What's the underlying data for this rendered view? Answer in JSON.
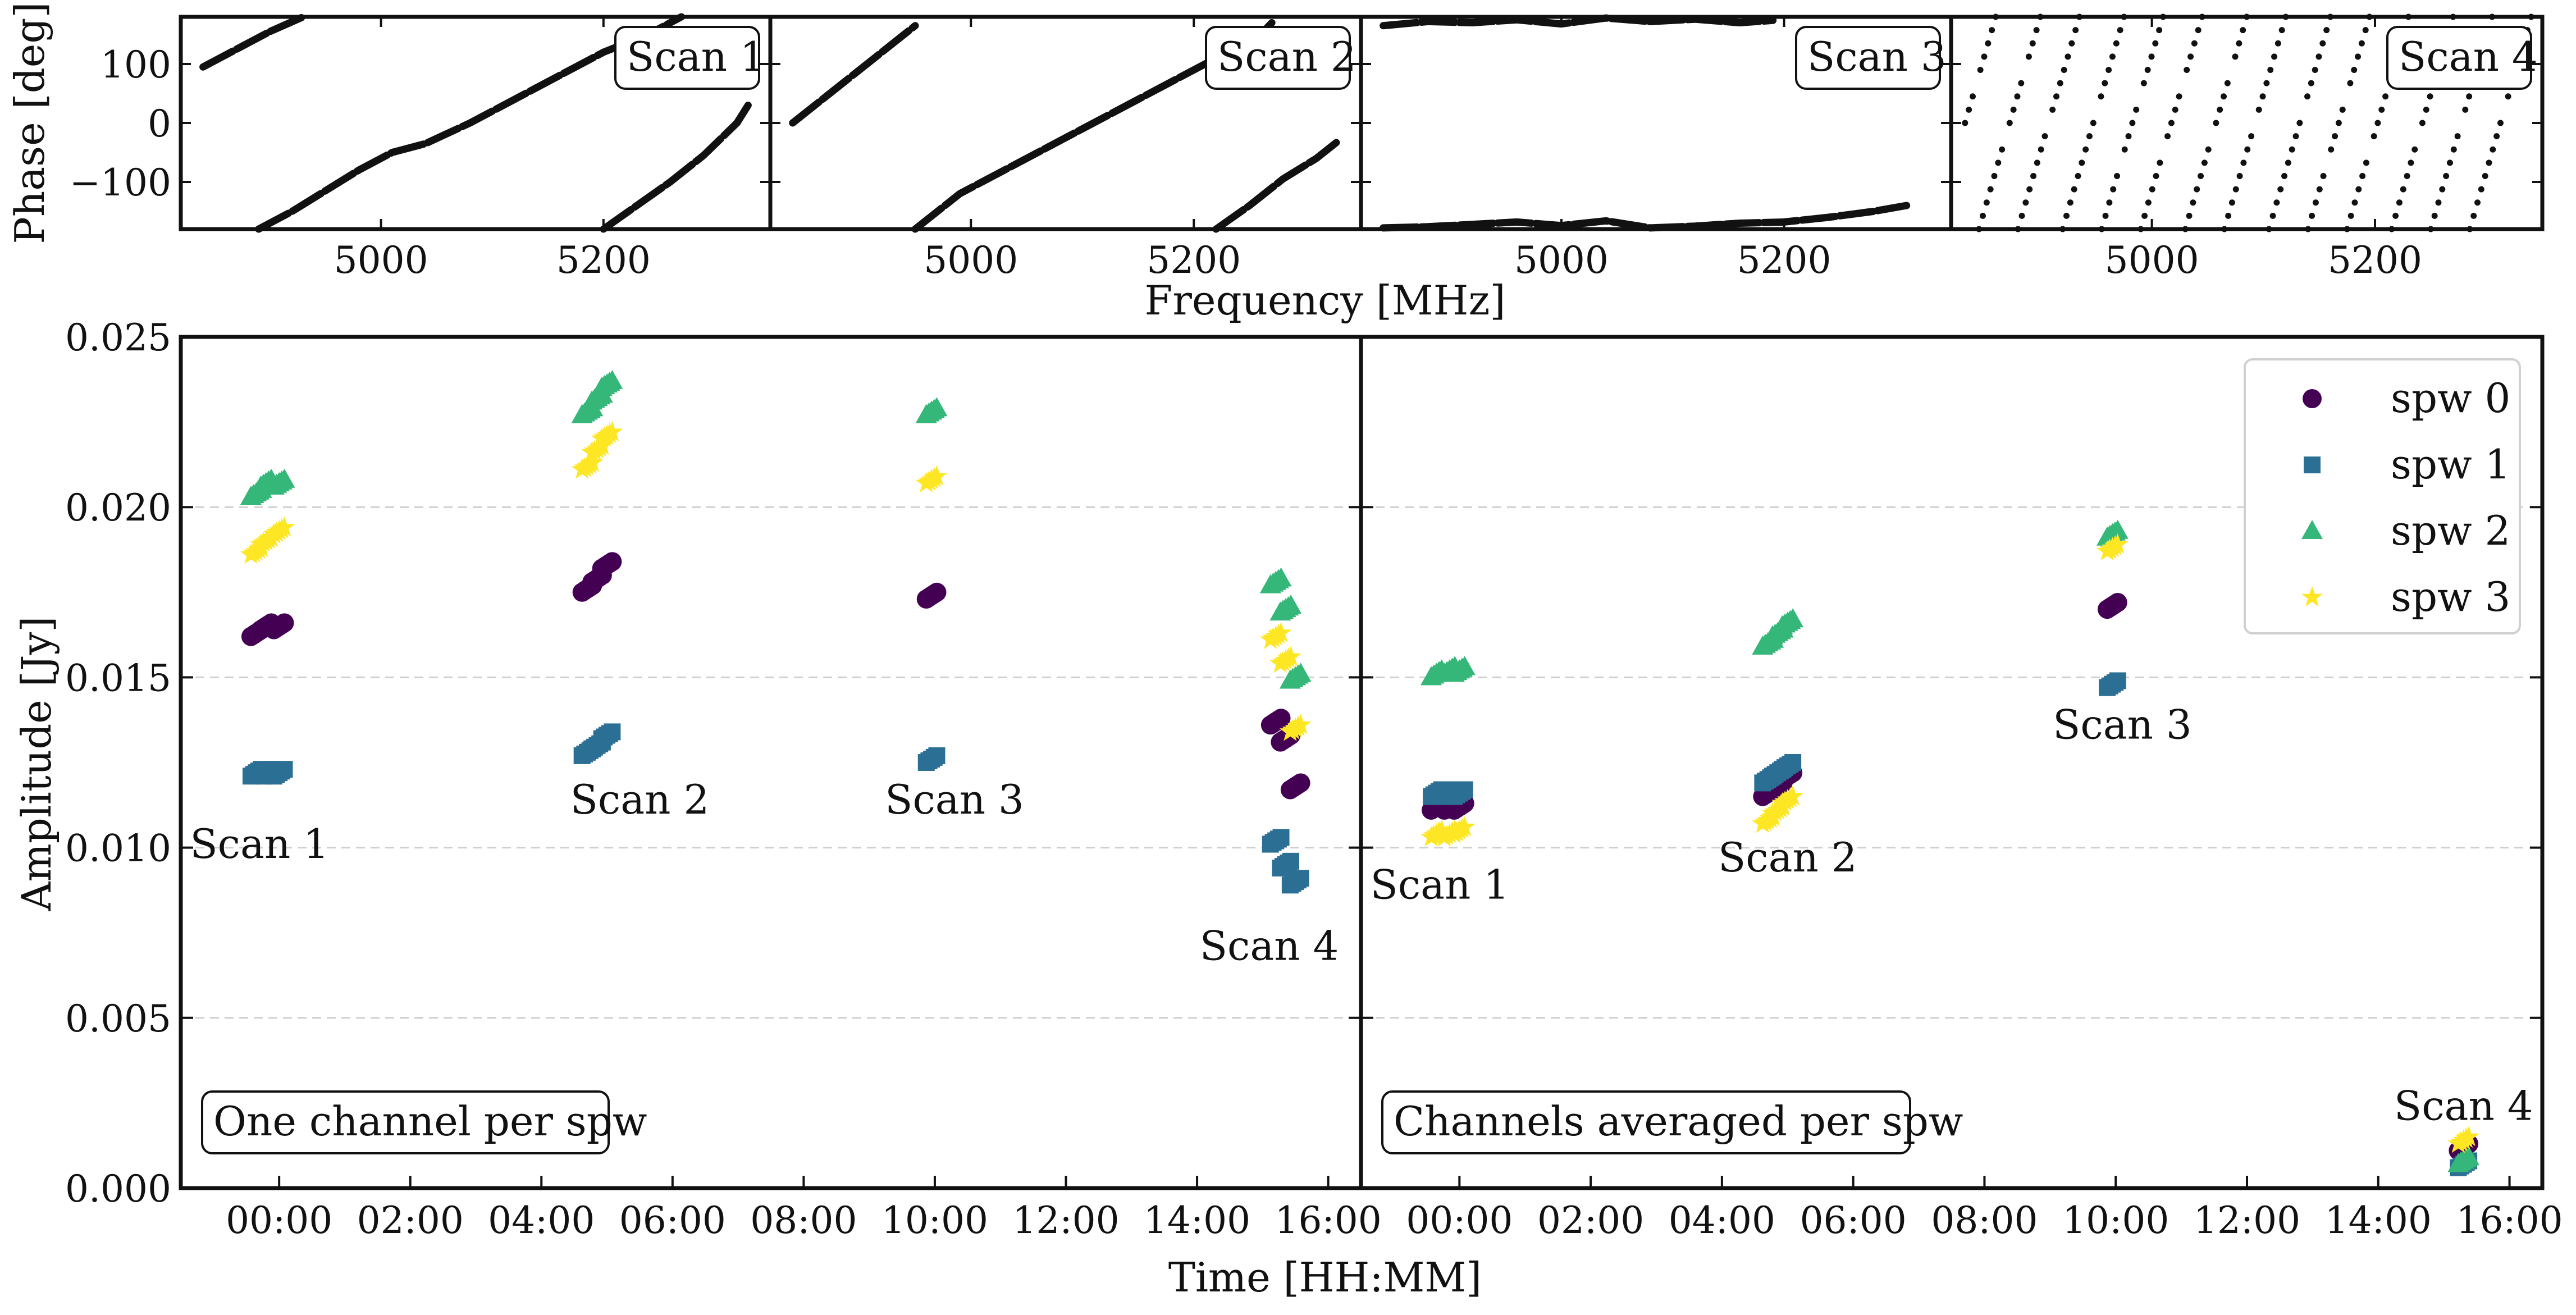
{
  "chart_data": [
    {
      "type": "scatter",
      "panel": "phase-scan-1",
      "ylabel": "Phase [deg]",
      "xlim": [
        4820,
        5350
      ],
      "ylim": [
        -180,
        180
      ],
      "xticks": [
        5000,
        5200
      ],
      "yticks": [
        100,
        0,
        -100
      ],
      "ytick_labels": [
        "100",
        "0",
        "−100"
      ],
      "label": "Scan 1",
      "series": [
        {
          "x": [
            4840,
            4870,
            4900,
            4930
          ],
          "y": [
            95,
            125,
            155,
            180
          ]
        },
        {
          "x": [
            4890,
            4920,
            4950,
            4980,
            5010,
            5040,
            5080,
            5120,
            5160,
            5200,
            5240,
            5270
          ],
          "y": [
            -180,
            -150,
            -115,
            -80,
            -50,
            -35,
            0,
            40,
            80,
            120,
            150,
            180
          ]
        },
        {
          "x": [
            5200,
            5230,
            5260,
            5290,
            5320
          ],
          "y": [
            -180,
            -140,
            -100,
            -55,
            0
          ]
        },
        {
          "x": [
            5320,
            5330
          ],
          "y": [
            0,
            30
          ]
        }
      ]
    },
    {
      "type": "scatter",
      "panel": "phase-scan-2",
      "xlim": [
        4820,
        5350
      ],
      "ylim": [
        -180,
        180
      ],
      "xticks": [
        5000,
        5200
      ],
      "label": "Scan 2",
      "series": [
        {
          "x": [
            4840,
            4880,
            4920,
            4950
          ],
          "y": [
            0,
            60,
            120,
            165
          ]
        },
        {
          "x": [
            4950,
            4990,
            5030,
            5080,
            5130,
            5180,
            5220,
            5260,
            5270
          ],
          "y": [
            -180,
            -120,
            -80,
            -30,
            20,
            70,
            110,
            150,
            170
          ]
        },
        {
          "x": [
            5220,
            5250,
            5280,
            5310,
            5330
          ],
          "y": [
            -180,
            -140,
            -95,
            -60,
            -30
          ]
        }
      ]
    },
    {
      "type": "scatter",
      "panel": "phase-scan-3",
      "xlim": [
        4820,
        5350
      ],
      "ylim": [
        -180,
        180
      ],
      "xticks": [
        5000,
        5200
      ],
      "label": "Scan 3",
      "series": [
        {
          "x": [
            4840,
            4880,
            4920,
            4960,
            5000,
            5040,
            5080,
            5120,
            5160,
            5190
          ],
          "y": [
            165,
            172,
            170,
            175,
            168,
            178,
            172,
            176,
            170,
            174
          ]
        },
        {
          "x": [
            4840,
            4880,
            4920,
            4960,
            5000,
            5040,
            5080,
            5120,
            5160,
            5200,
            5240,
            5280,
            5310
          ],
          "y": [
            -178,
            -176,
            -172,
            -168,
            -174,
            -166,
            -178,
            -175,
            -170,
            -168,
            -160,
            -150,
            -140
          ]
        }
      ]
    },
    {
      "type": "scatter",
      "panel": "phase-scan-4",
      "xlim": [
        4820,
        5350
      ],
      "ylim": [
        -180,
        180
      ],
      "xticks": [
        5000,
        5200
      ],
      "label": "Scan 4",
      "note": "many steep phase wraps (dotted diagonal lines)",
      "series": []
    },
    {
      "type": "scatter",
      "panel": "amplitude-one-channel",
      "xlabel": "Time [HH:MM]",
      "ylabel": "Amplitude [Jy]",
      "shared_xlabel_top": "Frequency [MHz]",
      "ylim": [
        0.0,
        0.025
      ],
      "xlim_hours": [
        -1.5,
        16.5
      ],
      "xticks": [
        "00:00",
        "02:00",
        "04:00",
        "06:00",
        "08:00",
        "10:00",
        "12:00",
        "14:00",
        "16:00"
      ],
      "yticks": [
        "0.000",
        "0.005",
        "0.010",
        "0.015",
        "0.020",
        "0.025"
      ],
      "grid": "horizontal dashed",
      "label": "One channel per spw",
      "annotations": [
        "Scan 1",
        "Scan 2",
        "Scan 3",
        "Scan 4"
      ],
      "series": [
        {
          "name": "spw 0",
          "color": "#440154",
          "marker": "circle",
          "x": [
            -0.35,
            -0.2,
            0.0,
            4.7,
            4.85,
            5.0,
            9.95,
            15.2,
            15.35,
            15.5
          ],
          "y": [
            0.0163,
            0.0165,
            0.0165,
            0.0176,
            0.0179,
            0.0183,
            0.0174,
            0.0137,
            0.0132,
            0.0118
          ]
        },
        {
          "name": "spw 1",
          "color": "#2c6f94",
          "marker": "square",
          "x": [
            -0.35,
            -0.15,
            0.0,
            4.7,
            4.85,
            5.0,
            9.95,
            15.2,
            15.35,
            15.5
          ],
          "y": [
            0.0122,
            0.0122,
            0.0122,
            0.0128,
            0.013,
            0.0133,
            0.0126,
            0.0102,
            0.0095,
            0.009
          ]
        },
        {
          "name": "spw 2",
          "color": "#35b779",
          "marker": "triangle",
          "x": [
            -0.35,
            -0.2,
            0.0,
            4.7,
            4.85,
            5.0,
            9.95,
            15.2,
            15.35,
            15.5
          ],
          "y": [
            0.0204,
            0.0207,
            0.0207,
            0.0228,
            0.0232,
            0.0236,
            0.0228,
            0.0178,
            0.017,
            0.015
          ]
        },
        {
          "name": "spw 3",
          "color": "#fde725",
          "marker": "star",
          "x": [
            -0.35,
            -0.2,
            0.0,
            4.7,
            4.85,
            5.0,
            9.95,
            15.2,
            15.35,
            15.5
          ],
          "y": [
            0.0187,
            0.019,
            0.0193,
            0.0212,
            0.0217,
            0.0221,
            0.0208,
            0.0162,
            0.0155,
            0.0135
          ]
        }
      ]
    },
    {
      "type": "scatter",
      "panel": "amplitude-channels-averaged",
      "xlabel": "Time [HH:MM]",
      "ylim": [
        0.0,
        0.025
      ],
      "xlim_hours": [
        -1.5,
        16.5
      ],
      "xticks": [
        "00:00",
        "02:00",
        "04:00",
        "06:00",
        "08:00",
        "10:00",
        "12:00",
        "14:00",
        "16:00"
      ],
      "grid": "horizontal dashed",
      "legend": "top-right",
      "label": "Channels averaged per spw",
      "annotations": [
        "Scan 1",
        "Scan 2",
        "Scan 3",
        "Scan 4"
      ],
      "series": [
        {
          "name": "spw 0",
          "color": "#440154",
          "marker": "circle",
          "x": [
            -0.35,
            -0.15,
            0.0,
            4.7,
            4.85,
            5.0,
            9.95,
            15.3
          ],
          "y": [
            0.0112,
            0.0112,
            0.0112,
            0.0116,
            0.0118,
            0.0121,
            0.0171,
            0.0012
          ]
        },
        {
          "name": "spw 1",
          "color": "#2c6f94",
          "marker": "square",
          "x": [
            -0.35,
            -0.15,
            0.0,
            4.7,
            4.85,
            5.0,
            9.95,
            15.3
          ],
          "y": [
            0.0116,
            0.0116,
            0.0116,
            0.012,
            0.0122,
            0.0124,
            0.0148,
            0.0007
          ]
        },
        {
          "name": "spw 2",
          "color": "#35b779",
          "marker": "triangle",
          "x": [
            -0.35,
            -0.15,
            0.0,
            4.7,
            4.85,
            5.0,
            9.95,
            15.3
          ],
          "y": [
            0.0151,
            0.0152,
            0.0152,
            0.016,
            0.0163,
            0.0166,
            0.0192,
            0.0008
          ]
        },
        {
          "name": "spw 3",
          "color": "#fde725",
          "marker": "star",
          "x": [
            -0.35,
            -0.15,
            0.0,
            4.7,
            4.85,
            5.0,
            9.95,
            15.3
          ],
          "y": [
            0.0104,
            0.0104,
            0.0105,
            0.0108,
            0.0111,
            0.0114,
            0.0188,
            0.0014
          ]
        }
      ]
    }
  ]
}
